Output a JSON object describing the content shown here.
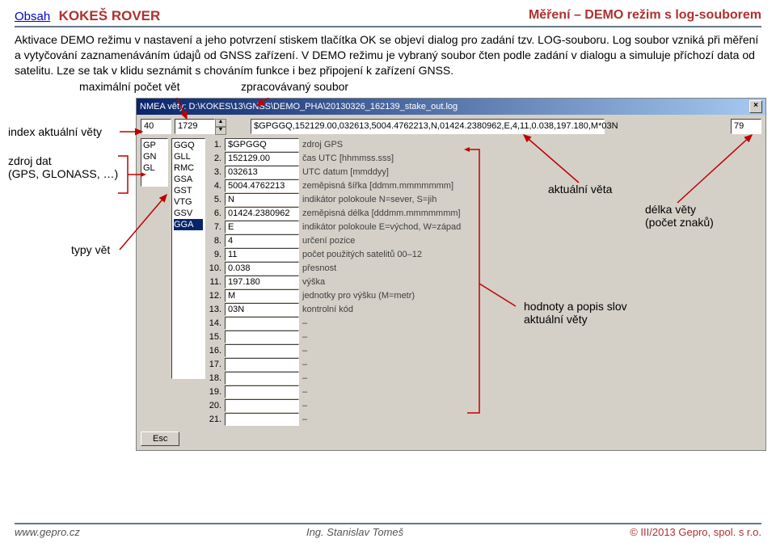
{
  "header": {
    "obsah": "Obsah",
    "brand": "KOKEŠ ROVER",
    "right": "Měření – DEMO režim s log-souborem"
  },
  "paragraph": "Aktivace DEMO režimu v nastavení a jeho potvrzení stiskem tlačítka OK se objeví dialog pro zadání tzv. LOG-souboru. Log soubor vzniká při měření a vytyčování zaznamenáváním údajů od GNSS zařízení. V DEMO režimu je vybraný soubor čten podle zadání v dialogu a simuluje příchozí data od satelitu. Lze se tak v klidu seznámit s chováním funkce i bez připojení k zařízení GNSS.",
  "annTop": {
    "max": "maximální počet vět",
    "file": "zpracovávaný soubor"
  },
  "annLeft": {
    "index": "index aktuální věty",
    "src": "zdroj dat\n(GPS, GLONASS, …)",
    "types": "typy vět"
  },
  "annRight": {
    "cur": "aktuální věta",
    "len": "délka věty\n(počet znaků)",
    "body": "hodnoty a popis slov\naktuální věty"
  },
  "dialog": {
    "title": "NMEA věty: D:\\KOKES\\13\\GNSS\\DEMO_PHA\\20130326_162139_stake_out.log",
    "field_small": "40",
    "field_spin": "1729",
    "field_long": "$GPGGQ,152129.00,032613,5004.4762213,N,01424.2380962,E,4,11,0.038,197.180,M*03N",
    "field_len": "79",
    "src_list": [
      "GP",
      "GN",
      "GL"
    ],
    "type_list": [
      "GGQ",
      "GLL",
      "RMC",
      "GSA",
      "GST",
      "VTG",
      "GSV",
      "GGA"
    ],
    "type_selected": 7,
    "rows": [
      {
        "n": "1.",
        "v": "$GPGGQ",
        "d": "zdroj GPS"
      },
      {
        "n": "2.",
        "v": "152129.00",
        "d": "čas UTC [hhmmss.sss]"
      },
      {
        "n": "3.",
        "v": "032613",
        "d": "UTC datum [mmddyy]"
      },
      {
        "n": "4.",
        "v": "5004.4762213",
        "d": "zeměpisná šířka [ddmm.mmmmmmm]"
      },
      {
        "n": "5.",
        "v": "N",
        "d": "indikátor polokoule N=sever, S=jih"
      },
      {
        "n": "6.",
        "v": "01424.2380962",
        "d": "zeměpisná délka [dddmm.mmmmmmm]"
      },
      {
        "n": "7.",
        "v": "E",
        "d": "indikátor polokoule E=východ, W=západ"
      },
      {
        "n": "8.",
        "v": "4",
        "d": "určení pozice"
      },
      {
        "n": "9.",
        "v": "11",
        "d": "počet použitých satelitů 00–12"
      },
      {
        "n": "10.",
        "v": "0.038",
        "d": "přesnost"
      },
      {
        "n": "11.",
        "v": "197.180",
        "d": "výška"
      },
      {
        "n": "12.",
        "v": "M",
        "d": "jednotky pro výšku (M=metr)"
      },
      {
        "n": "13.",
        "v": "03N",
        "d": "kontrolní kód"
      },
      {
        "n": "14.",
        "v": "",
        "d": "–"
      },
      {
        "n": "15.",
        "v": "",
        "d": "–"
      },
      {
        "n": "16.",
        "v": "",
        "d": "–"
      },
      {
        "n": "17.",
        "v": "",
        "d": "–"
      },
      {
        "n": "18.",
        "v": "",
        "d": "–"
      },
      {
        "n": "19.",
        "v": "",
        "d": "–"
      },
      {
        "n": "20.",
        "v": "",
        "d": "–"
      },
      {
        "n": "21.",
        "v": "",
        "d": "–"
      }
    ],
    "esc": "Esc"
  },
  "footer": {
    "left": "www.gepro.cz",
    "mid": "Ing. Stanislav Tomeš",
    "right": "© III/2013 Gepro, spol. s r.o."
  },
  "colors": {
    "arrow": "#c00000"
  }
}
